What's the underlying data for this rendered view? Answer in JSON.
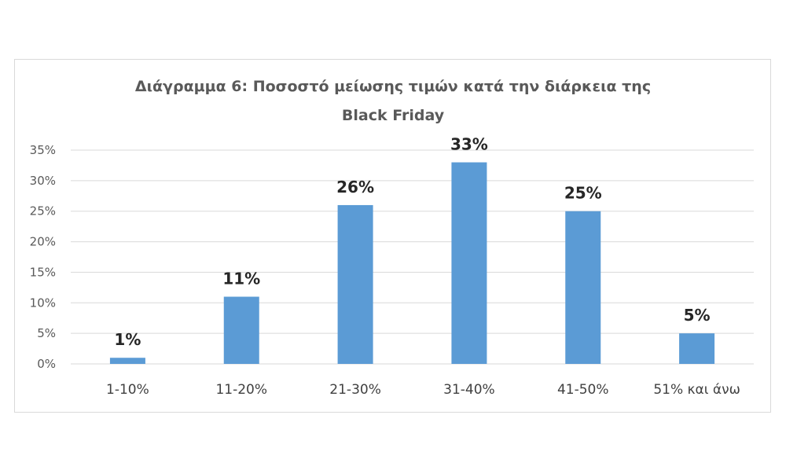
{
  "chart_data": {
    "type": "bar",
    "title_lines": [
      "Διάγραμμα 6: Ποσοστό μείωσης τιμών κατά την διάρκεια της",
      "Black Friday"
    ],
    "categories": [
      "1-10%",
      "11-20%",
      "21-30%",
      "31-40%",
      "41-50%",
      "51% και άνω"
    ],
    "values": [
      1,
      11,
      26,
      33,
      25,
      5
    ],
    "value_labels": [
      "1%",
      "11%",
      "26%",
      "33%",
      "25%",
      "5%"
    ],
    "ylim": [
      0,
      35
    ],
    "yticks": [
      0,
      5,
      10,
      15,
      20,
      25,
      30,
      35
    ],
    "ytick_labels": [
      "0%",
      "5%",
      "10%",
      "15%",
      "20%",
      "25%",
      "30%",
      "35%"
    ],
    "grid": true,
    "legend": "none",
    "bar_color": "#5b9bd5"
  }
}
